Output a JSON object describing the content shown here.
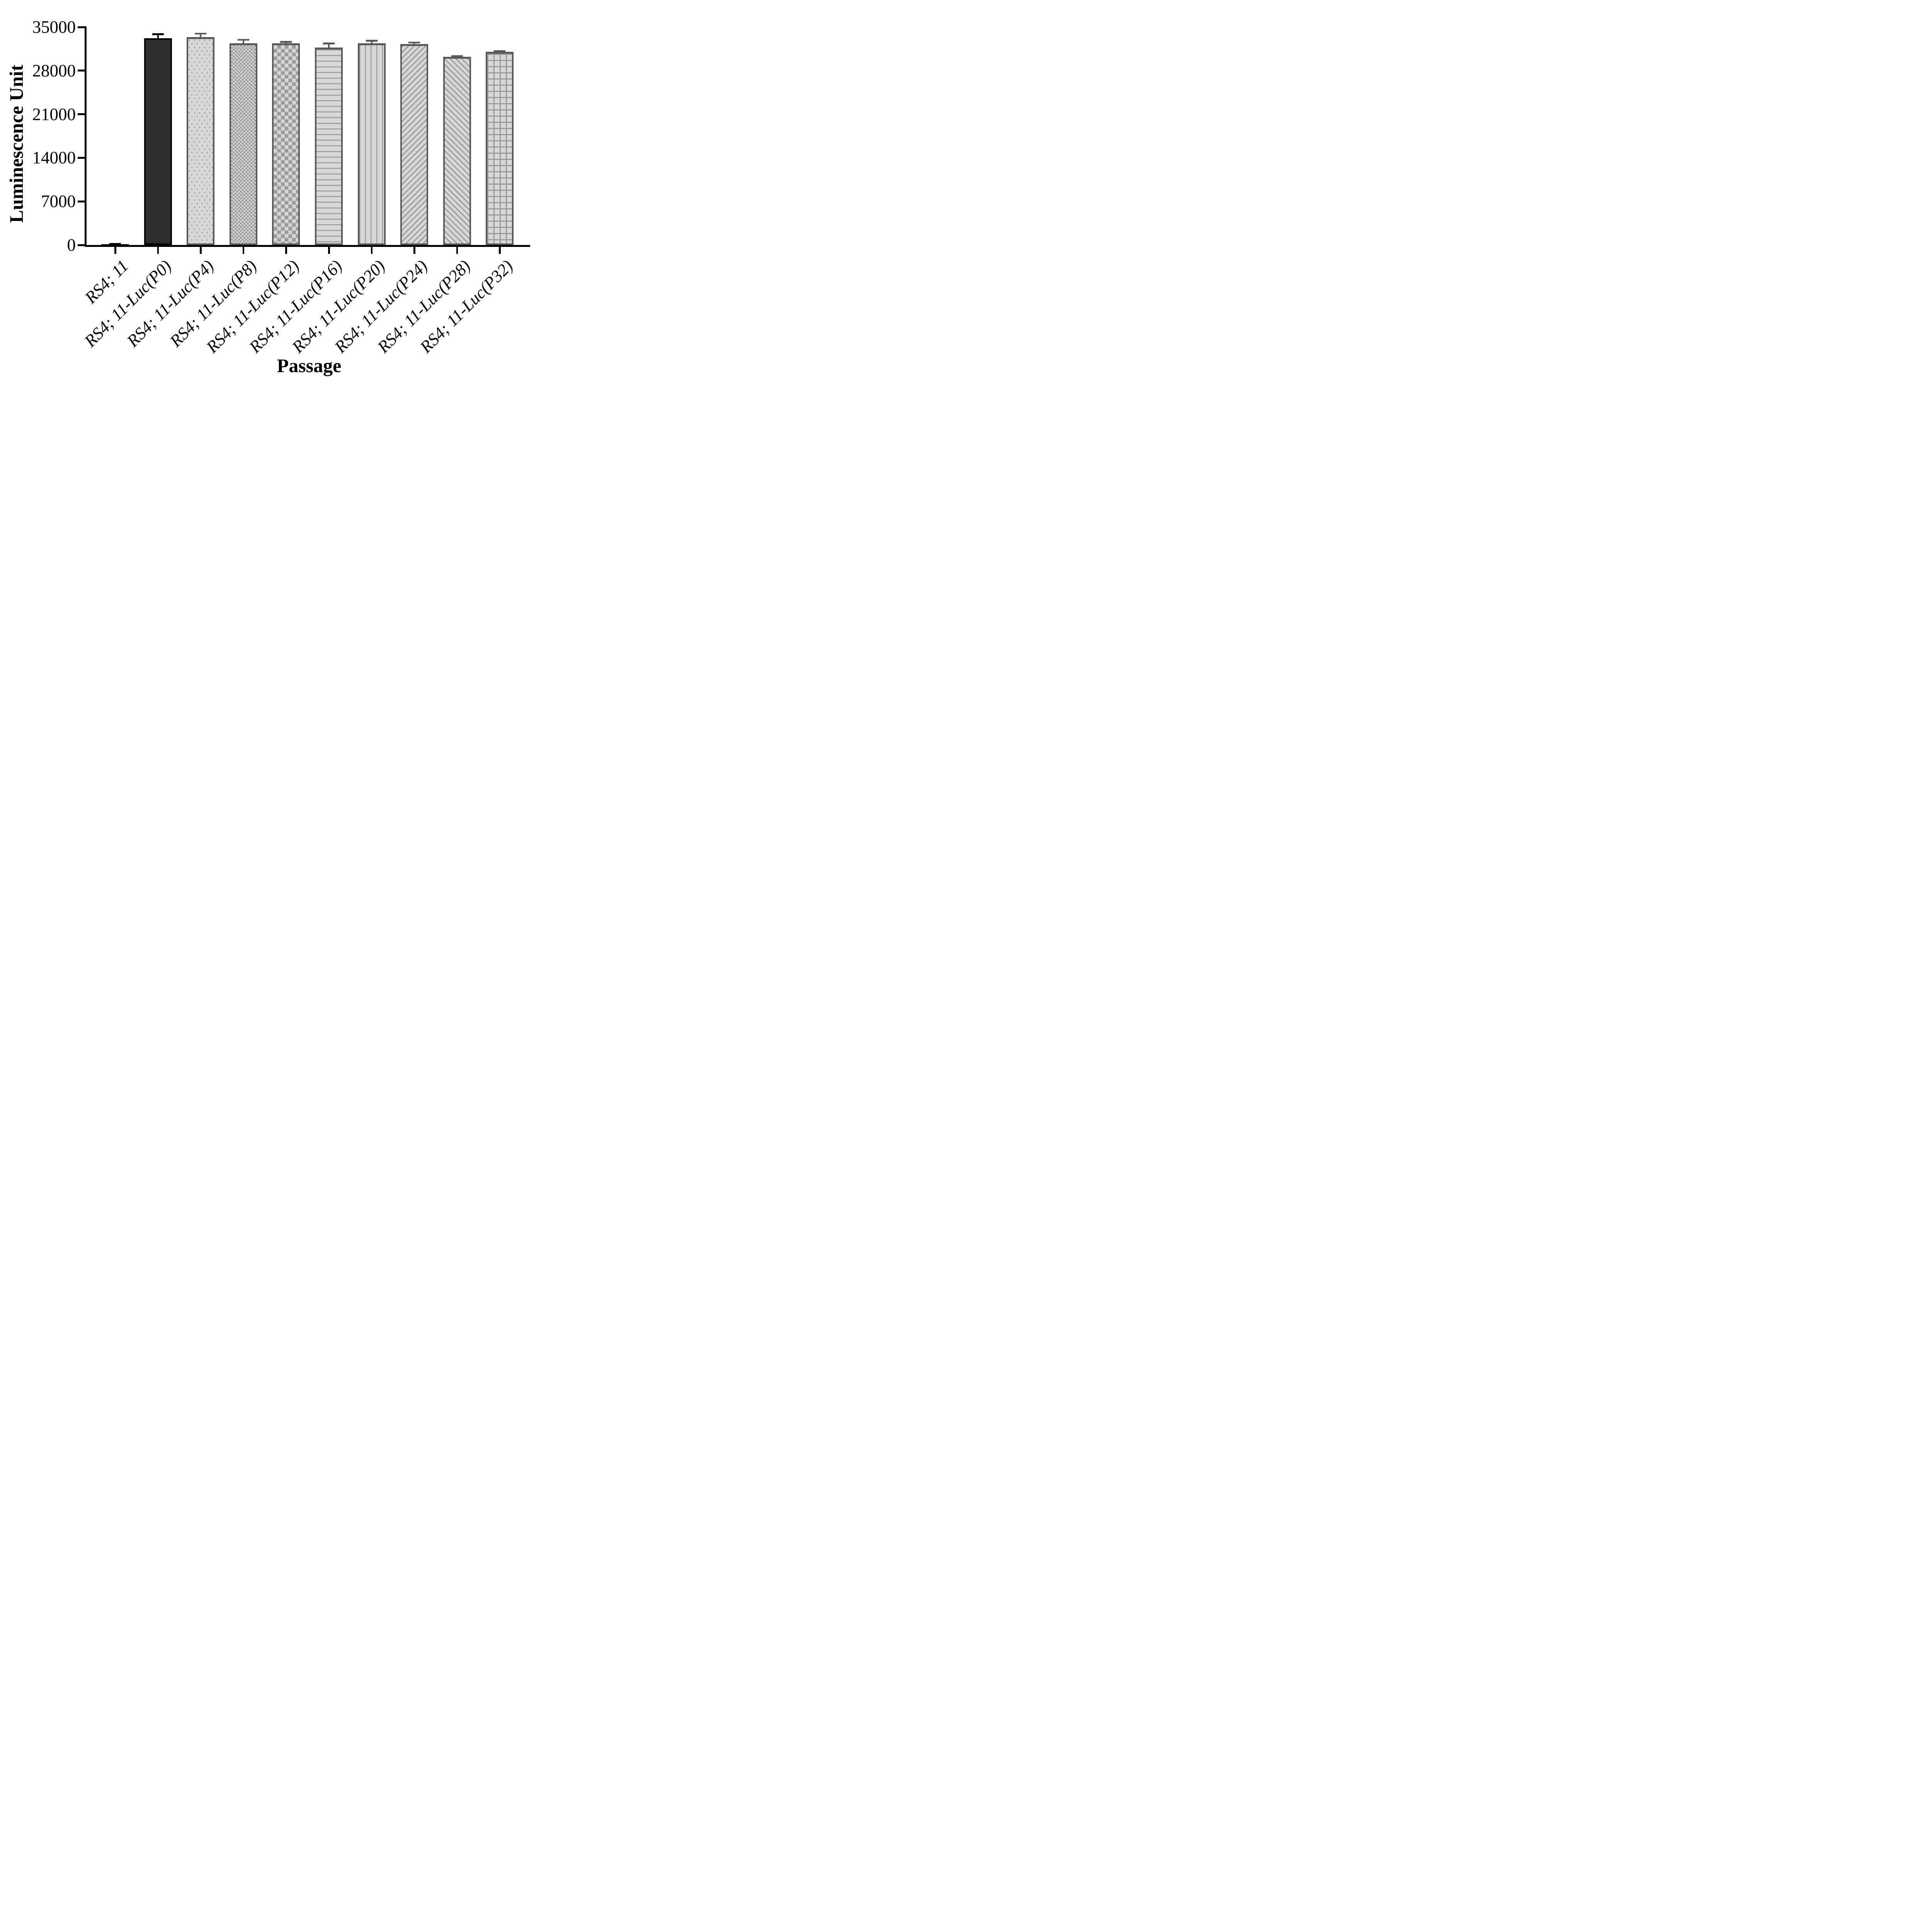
{
  "chart_data": {
    "type": "bar",
    "title": "",
    "xlabel": "Passage",
    "ylabel": "Luminescence Unit",
    "ylim": [
      0,
      35000
    ],
    "yticks": [
      0,
      7000,
      14000,
      21000,
      28000,
      35000
    ],
    "grid": false,
    "legend": null,
    "error_bars": "upper SD, with caps",
    "categories": [
      "RS4; 11",
      "RS4; 11-Luc(P0)",
      "RS4; 11-Luc(P4)",
      "RS4; 11-Luc(P8)",
      "RS4; 11-Luc(P12)",
      "RS4; 11-Luc(P16)",
      "RS4; 11-Luc(P20)",
      "RS4; 11-Luc(P24)",
      "RS4; 11-Luc(P28)",
      "RS4; 11-Luc(P32)"
    ],
    "values": [
      150,
      33200,
      33400,
      32400,
      32400,
      31700,
      32400,
      32300,
      30200,
      31000
    ],
    "errors_sd": [
      150,
      800,
      700,
      700,
      350,
      800,
      550,
      350,
      300,
      300
    ],
    "bar_styles": [
      {
        "pattern": "solid",
        "fill": "#000000",
        "border": "#000000",
        "error_color": "#000000"
      },
      {
        "pattern": "solid",
        "fill": "#2d2d2d",
        "border": "#000000",
        "error_color": "#000000"
      },
      {
        "pattern": "dots",
        "fill": "",
        "border": "#595959",
        "error_color": "#595959"
      },
      {
        "pattern": "checker-fine",
        "fill": "",
        "border": "#595959",
        "error_color": "#595959"
      },
      {
        "pattern": "checker-coarse",
        "fill": "",
        "border": "#595959",
        "error_color": "#595959"
      },
      {
        "pattern": "hlines",
        "fill": "",
        "border": "#595959",
        "error_color": "#595959"
      },
      {
        "pattern": "vlines",
        "fill": "",
        "border": "#595959",
        "error_color": "#595959"
      },
      {
        "pattern": "diag-up",
        "fill": "",
        "border": "#595959",
        "error_color": "#595959"
      },
      {
        "pattern": "diag-down",
        "fill": "",
        "border": "#595959",
        "error_color": "#595959"
      },
      {
        "pattern": "grid",
        "fill": "",
        "border": "#595959",
        "error_color": "#595959"
      }
    ],
    "colors": {
      "axis": "#000000",
      "pattern_foreground": "#9a9a9a",
      "pattern_background": "#d7d7d7",
      "patterned_bar_border": "#595959"
    }
  }
}
